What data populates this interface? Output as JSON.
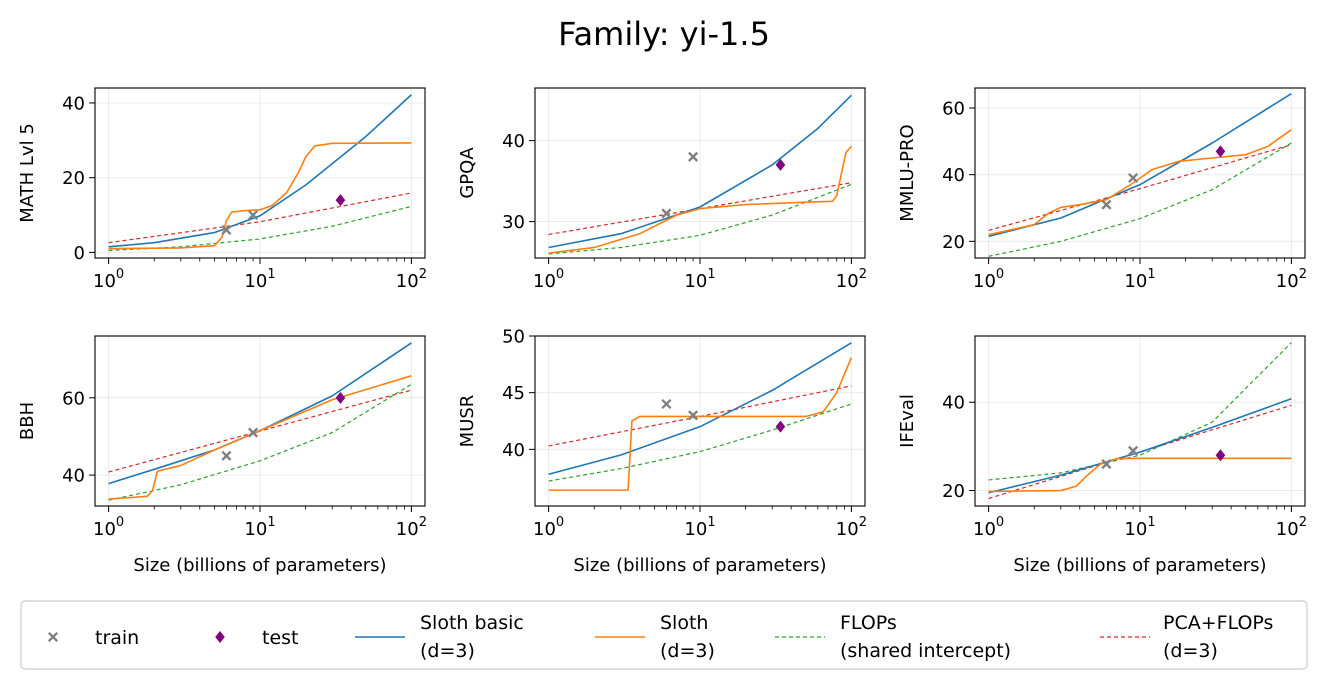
{
  "title": "Family: yi-1.5",
  "colors": {
    "train": "#808080",
    "test": "#800080",
    "sloth_basic": "#1f77b4",
    "sloth": "#ff7f0e",
    "flops": "#2ca02c",
    "pca_flops": "#d62728"
  },
  "legend": [
    {
      "key": "train",
      "label": [
        "train"
      ],
      "style": "marker-x"
    },
    {
      "key": "test",
      "label": [
        "test"
      ],
      "style": "marker-diamond"
    },
    {
      "key": "sloth_basic",
      "label": [
        "Sloth basic",
        "(d=3)"
      ],
      "style": "solid"
    },
    {
      "key": "sloth",
      "label": [
        "Sloth",
        "(d=3)"
      ],
      "style": "solid"
    },
    {
      "key": "flops",
      "label": [
        "FLOPs",
        "(shared intercept)"
      ],
      "style": "dashed"
    },
    {
      "key": "pca_flops",
      "label": [
        "PCA+FLOPs",
        "(d=3)"
      ],
      "style": "dashed"
    }
  ],
  "chart_data": [
    {
      "type": "line",
      "ylabel": "MATH Lvl 5",
      "xlabel": "",
      "xscale": "log",
      "xlim": [
        1,
        100
      ],
      "ylim": [
        -1.5,
        44
      ],
      "yticks": [
        0,
        20,
        40
      ],
      "xticks": [
        1,
        10,
        100
      ],
      "xtick_labels": [
        "10^0",
        "10^1",
        "10^2"
      ],
      "train": [
        [
          6,
          6
        ],
        [
          9,
          10
        ]
      ],
      "test": [
        [
          34,
          14
        ]
      ],
      "series": [
        {
          "key": "sloth_basic",
          "points": [
            [
              1,
              1.5
            ],
            [
              2,
              2.6
            ],
            [
              5,
              5.3
            ],
            [
              10,
              9.8
            ],
            [
              20,
              18.0
            ],
            [
              50,
              31.0
            ],
            [
              100,
              42.2
            ]
          ]
        },
        {
          "key": "sloth",
          "points": [
            [
              1,
              1.0
            ],
            [
              3,
              1.2
            ],
            [
              5,
              1.8
            ],
            [
              5.6,
              4
            ],
            [
              6,
              8.5
            ],
            [
              6.5,
              10.8
            ],
            [
              8,
              11.2
            ],
            [
              10,
              11.4
            ],
            [
              12,
              12.5
            ],
            [
              15,
              16
            ],
            [
              18,
              21.5
            ],
            [
              20,
              25.5
            ],
            [
              23,
              28.5
            ],
            [
              30,
              29.2
            ],
            [
              100,
              29.3
            ]
          ]
        },
        {
          "key": "flops",
          "points": [
            [
              1,
              0.5
            ],
            [
              3,
              1.5
            ],
            [
              10,
              3.6
            ],
            [
              30,
              7.0
            ],
            [
              100,
              12.3
            ]
          ]
        },
        {
          "key": "pca_flops",
          "points": [
            [
              1,
              2.6
            ],
            [
              10,
              8.2
            ],
            [
              100,
              15.9
            ]
          ]
        }
      ]
    },
    {
      "type": "line",
      "ylabel": "GPQA",
      "xlabel": "",
      "xscale": "log",
      "xlim": [
        1,
        100
      ],
      "ylim": [
        25.5,
        46.5
      ],
      "yticks": [
        30,
        40
      ],
      "xticks": [
        1,
        10,
        100
      ],
      "xtick_labels": [
        "10^0",
        "10^1",
        "10^2"
      ],
      "train": [
        [
          6,
          31
        ],
        [
          9,
          38
        ]
      ],
      "test": [
        [
          34,
          37
        ]
      ],
      "series": [
        {
          "key": "sloth_basic",
          "points": [
            [
              1,
              26.8
            ],
            [
              3,
              28.5
            ],
            [
              10,
              31.8
            ],
            [
              30,
              37.0
            ],
            [
              60,
              41.5
            ],
            [
              100,
              45.6
            ]
          ]
        },
        {
          "key": "sloth",
          "points": [
            [
              1,
              26.1
            ],
            [
              2,
              26.8
            ],
            [
              4,
              28.5
            ],
            [
              7,
              30.8
            ],
            [
              10,
              31.6
            ],
            [
              20,
              32.1
            ],
            [
              50,
              32.4
            ],
            [
              75,
              32.5
            ],
            [
              80,
              33.2
            ],
            [
              85,
              35.5
            ],
            [
              92,
              38.5
            ],
            [
              100,
              39.3
            ]
          ]
        },
        {
          "key": "flops",
          "points": [
            [
              1,
              26.0
            ],
            [
              3,
              26.8
            ],
            [
              10,
              28.3
            ],
            [
              30,
              30.8
            ],
            [
              100,
              34.6
            ]
          ]
        },
        {
          "key": "pca_flops",
          "points": [
            [
              1,
              28.4
            ],
            [
              10,
              31.6
            ],
            [
              100,
              34.8
            ]
          ]
        }
      ]
    },
    {
      "type": "line",
      "ylabel": "MMLU-PRO",
      "xlabel": "",
      "xscale": "log",
      "xlim": [
        1,
        100
      ],
      "ylim": [
        15,
        66
      ],
      "yticks": [
        20,
        40,
        60
      ],
      "xticks": [
        1,
        10,
        100
      ],
      "xtick_labels": [
        "10^0",
        "10^1",
        "10^2"
      ],
      "train": [
        [
          6,
          31
        ],
        [
          9,
          39
        ]
      ],
      "test": [
        [
          34,
          47
        ]
      ],
      "series": [
        {
          "key": "sloth_basic",
          "points": [
            [
              1,
              21.5
            ],
            [
              3,
              27.0
            ],
            [
              10,
              37.0
            ],
            [
              30,
              49.5
            ],
            [
              100,
              64.3
            ]
          ]
        },
        {
          "key": "sloth",
          "points": [
            [
              1,
              22.0
            ],
            [
              2,
              25.0
            ],
            [
              2.5,
              28.5
            ],
            [
              3,
              30.2
            ],
            [
              4,
              31.0
            ],
            [
              6,
              32.5
            ],
            [
              9,
              37.5
            ],
            [
              12,
              41.5
            ],
            [
              18,
              44.0
            ],
            [
              30,
              45.0
            ],
            [
              50,
              46.0
            ],
            [
              70,
              48.5
            ],
            [
              100,
              53.5
            ]
          ]
        },
        {
          "key": "flops",
          "points": [
            [
              1,
              15.5
            ],
            [
              3,
              20.0
            ],
            [
              10,
              26.8
            ],
            [
              30,
              35.5
            ],
            [
              100,
              49.5
            ]
          ]
        },
        {
          "key": "pca_flops",
          "points": [
            [
              1,
              23.3
            ],
            [
              10,
              35.8
            ],
            [
              100,
              49.0
            ]
          ]
        }
      ]
    },
    {
      "type": "line",
      "ylabel": "BBH",
      "xlabel": "Size (billions of parameters)",
      "xscale": "log",
      "xlim": [
        1,
        100
      ],
      "ylim": [
        32,
        76
      ],
      "yticks": [
        40,
        60
      ],
      "xticks": [
        1,
        10,
        100
      ],
      "xtick_labels": [
        "10^0",
        "10^1",
        "10^2"
      ],
      "train": [
        [
          6,
          45
        ],
        [
          9,
          51
        ]
      ],
      "test": [
        [
          34,
          60
        ]
      ],
      "series": [
        {
          "key": "sloth_basic",
          "points": [
            [
              1,
              37.8
            ],
            [
              2,
              41.5
            ],
            [
              5,
              46.5
            ],
            [
              10,
              51.5
            ],
            [
              30,
              60.5
            ],
            [
              100,
              74.2
            ]
          ]
        },
        {
          "key": "sloth",
          "points": [
            [
              1,
              33.8
            ],
            [
              1.8,
              34.5
            ],
            [
              1.95,
              36
            ],
            [
              2.1,
              41
            ],
            [
              3,
              42.5
            ],
            [
              5,
              46.5
            ],
            [
              10,
              51.5
            ],
            [
              30,
              59.5
            ],
            [
              100,
              65.7
            ]
          ]
        },
        {
          "key": "flops",
          "points": [
            [
              1,
              33.5
            ],
            [
              3,
              37.5
            ],
            [
              10,
              43.7
            ],
            [
              30,
              51.0
            ],
            [
              100,
              63.5
            ]
          ]
        },
        {
          "key": "pca_flops",
          "points": [
            [
              1,
              40.8
            ],
            [
              10,
              51.4
            ],
            [
              100,
              62.0
            ]
          ]
        }
      ]
    },
    {
      "type": "line",
      "ylabel": "MUSR",
      "xlabel": "Size (billions of parameters)",
      "xscale": "log",
      "xlim": [
        1,
        100
      ],
      "ylim": [
        35,
        50
      ],
      "yticks": [
        40,
        45,
        50
      ],
      "xticks": [
        1,
        10,
        100
      ],
      "xtick_labels": [
        "10^0",
        "10^1",
        "10^2"
      ],
      "train": [
        [
          6,
          44
        ],
        [
          9,
          43
        ]
      ],
      "test": [
        [
          34,
          42
        ]
      ],
      "series": [
        {
          "key": "sloth_basic",
          "points": [
            [
              1,
              37.8
            ],
            [
              3,
              39.5
            ],
            [
              10,
              42.0
            ],
            [
              30,
              45.2
            ],
            [
              100,
              49.4
            ]
          ]
        },
        {
          "key": "sloth",
          "points": [
            [
              1,
              36.4
            ],
            [
              3.35,
              36.4
            ],
            [
              3.55,
              42.5
            ],
            [
              4,
              42.9
            ],
            [
              10,
              42.9
            ],
            [
              50,
              42.9
            ],
            [
              65,
              43.3
            ],
            [
              80,
              45.0
            ],
            [
              100,
              48.1
            ]
          ]
        },
        {
          "key": "flops",
          "points": [
            [
              1,
              37.2
            ],
            [
              3,
              38.3
            ],
            [
              10,
              39.8
            ],
            [
              30,
              41.7
            ],
            [
              100,
              44.0
            ]
          ]
        },
        {
          "key": "pca_flops",
          "points": [
            [
              1,
              40.3
            ],
            [
              10,
              42.9
            ],
            [
              100,
              45.6
            ]
          ]
        }
      ]
    },
    {
      "type": "line",
      "ylabel": "IFEval",
      "xlabel": "Size (billions of parameters)",
      "xscale": "log",
      "xlim": [
        1,
        100
      ],
      "ylim": [
        16.5,
        55
      ],
      "yticks": [
        20,
        40
      ],
      "xticks": [
        1,
        10,
        100
      ],
      "xtick_labels": [
        "10^0",
        "10^1",
        "10^2"
      ],
      "train": [
        [
          6,
          26
        ],
        [
          9,
          29
        ]
      ],
      "test": [
        [
          34,
          28
        ]
      ],
      "series": [
        {
          "key": "sloth_basic",
          "points": [
            [
              1,
              19.5
            ],
            [
              3,
              23.5
            ],
            [
              10,
              28.7
            ],
            [
              30,
              34.3
            ],
            [
              100,
              40.8
            ]
          ]
        },
        {
          "key": "sloth",
          "points": [
            [
              1,
              19.8
            ],
            [
              3,
              20.0
            ],
            [
              3.8,
              21
            ],
            [
              4.5,
              23.5
            ],
            [
              5.5,
              26
            ],
            [
              7,
              27.2
            ],
            [
              10,
              27.3
            ],
            [
              100,
              27.3
            ]
          ]
        },
        {
          "key": "flops",
          "points": [
            [
              1,
              22.4
            ],
            [
              3,
              24.0
            ],
            [
              10,
              28.0
            ],
            [
              30,
              35.5
            ],
            [
              100,
              53.5
            ]
          ]
        },
        {
          "key": "pca_flops",
          "points": [
            [
              1,
              18.2
            ],
            [
              10,
              28.7
            ],
            [
              100,
              39.3
            ]
          ]
        }
      ]
    }
  ]
}
